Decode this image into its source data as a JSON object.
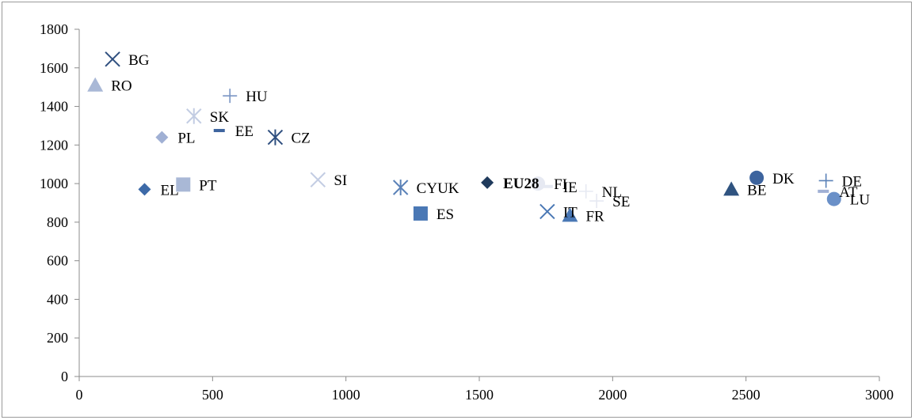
{
  "chart_data": {
    "type": "scatter",
    "title": "",
    "xlabel": "",
    "ylabel": "",
    "xlim": [
      0,
      3000
    ],
    "ylim": [
      0,
      1800
    ],
    "xticks": [
      0,
      500,
      1000,
      1500,
      2000,
      2500,
      3000
    ],
    "yticks": [
      0,
      200,
      400,
      600,
      800,
      1000,
      1200,
      1400,
      1600,
      1800
    ],
    "grid": false,
    "legend": "none",
    "points": [
      {
        "label": "BG",
        "x": 125,
        "y": 1645,
        "marker": "x",
        "color": "#2f4f7f"
      },
      {
        "label": "RO",
        "x": 60,
        "y": 1510,
        "marker": "triangle",
        "color": "#a9b8d6"
      },
      {
        "label": "HU",
        "x": 565,
        "y": 1455,
        "marker": "plus",
        "color": "#7a95c4"
      },
      {
        "label": "SK",
        "x": 430,
        "y": 1350,
        "marker": "asterisk",
        "color": "#c3cde3"
      },
      {
        "label": "EE",
        "x": 525,
        "y": 1275,
        "marker": "dash",
        "color": "#3d649e"
      },
      {
        "label": "PL",
        "x": 310,
        "y": 1240,
        "marker": "diamond",
        "color": "#a0b0d4"
      },
      {
        "label": "CZ",
        "x": 735,
        "y": 1240,
        "marker": "asterisk",
        "color": "#2f4f7f"
      },
      {
        "label": "SI",
        "x": 895,
        "y": 1020,
        "marker": "x",
        "color": "#c3cde3"
      },
      {
        "label": "PT",
        "x": 390,
        "y": 995,
        "marker": "square",
        "color": "#a9b8d6"
      },
      {
        "label": "EL",
        "x": 245,
        "y": 970,
        "marker": "diamond",
        "color": "#3d6aa8"
      },
      {
        "label": "CYUK",
        "x": 1205,
        "y": 980,
        "marker": "asterisk",
        "color": "#5b82b8"
      },
      {
        "label": "ES",
        "x": 1280,
        "y": 845,
        "marker": "square",
        "color": "#4a78b5"
      },
      {
        "label": "EU28",
        "x": 1530,
        "y": 1005,
        "marker": "diamond",
        "color": "#1f3a5c",
        "bold": true
      },
      {
        "label": "FI",
        "x": 1720,
        "y": 1000,
        "marker": "circle",
        "color": "#e6e9f2"
      },
      {
        "label": "IE",
        "x": 1755,
        "y": 985,
        "marker": "dash",
        "color": "#e6e9f2"
      },
      {
        "label": "IT",
        "x": 1755,
        "y": 855,
        "marker": "x",
        "color": "#4a78b5"
      },
      {
        "label": "FR",
        "x": 1840,
        "y": 835,
        "marker": "triangle",
        "color": "#4a78b5"
      },
      {
        "label": "NL",
        "x": 1900,
        "y": 960,
        "marker": "plus",
        "color": "#e6e9f2"
      },
      {
        "label": "SE",
        "x": 1940,
        "y": 910,
        "marker": "plus",
        "color": "#e6e9f2"
      },
      {
        "label": "BE",
        "x": 2445,
        "y": 970,
        "marker": "triangle",
        "color": "#2f5380"
      },
      {
        "label": "DK",
        "x": 2540,
        "y": 1030,
        "marker": "circle",
        "color": "#3d649e"
      },
      {
        "label": "DE",
        "x": 2800,
        "y": 1015,
        "marker": "plus",
        "color": "#5b82b8"
      },
      {
        "label": "AT",
        "x": 2790,
        "y": 960,
        "marker": "dash",
        "color": "#a0b0d4"
      },
      {
        "label": "LU",
        "x": 2830,
        "y": 920,
        "marker": "circle",
        "color": "#6a90c8"
      }
    ]
  }
}
